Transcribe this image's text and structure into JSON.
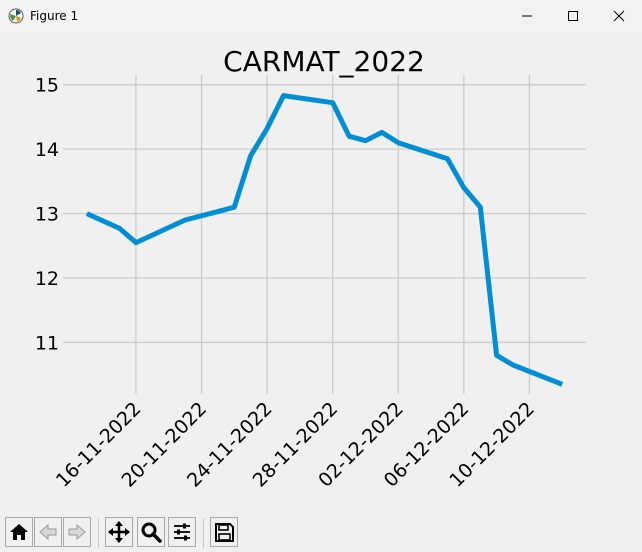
{
  "window": {
    "title": "Figure 1"
  },
  "chart_data": {
    "type": "line",
    "title": "CARMAT_2022",
    "xlabel": "",
    "ylabel": "",
    "x": [
      "13-11-2022",
      "15-11-2022",
      "16-11-2022",
      "19-11-2022",
      "21-11-2022",
      "22-11-2022",
      "23-11-2022",
      "24-11-2022",
      "25-11-2022",
      "28-11-2022",
      "29-11-2022",
      "30-11-2022",
      "01-12-2022",
      "02-12-2022",
      "05-12-2022",
      "06-12-2022",
      "07-12-2022",
      "08-12-2022",
      "09-12-2022",
      "12-12-2022"
    ],
    "series": [
      {
        "values": [
          13.0,
          12.77,
          12.55,
          12.9,
          13.03,
          13.1,
          13.9,
          14.32,
          14.83,
          14.72,
          14.2,
          14.13,
          14.26,
          14.1,
          13.85,
          13.4,
          13.1,
          10.8,
          10.65,
          10.35
        ],
        "color": "#008fd5"
      }
    ],
    "ylim": [
      10.2,
      15.15
    ],
    "yticks": [
      11,
      12,
      13,
      14,
      15
    ],
    "xticks": [
      "16-11-2022",
      "20-11-2022",
      "24-11-2022",
      "28-11-2022",
      "02-12-2022",
      "06-12-2022",
      "10-12-2022"
    ],
    "grid": true,
    "line_color": "#008fd5",
    "grid_color": "#cbcbcb"
  },
  "toolbar": {
    "buttons": [
      {
        "name": "home-icon"
      },
      {
        "name": "back-icon"
      },
      {
        "name": "forward-icon"
      },
      {
        "name": "pan-icon"
      },
      {
        "name": "zoom-icon"
      },
      {
        "name": "configure-subplots-icon"
      },
      {
        "name": "save-icon"
      }
    ]
  }
}
